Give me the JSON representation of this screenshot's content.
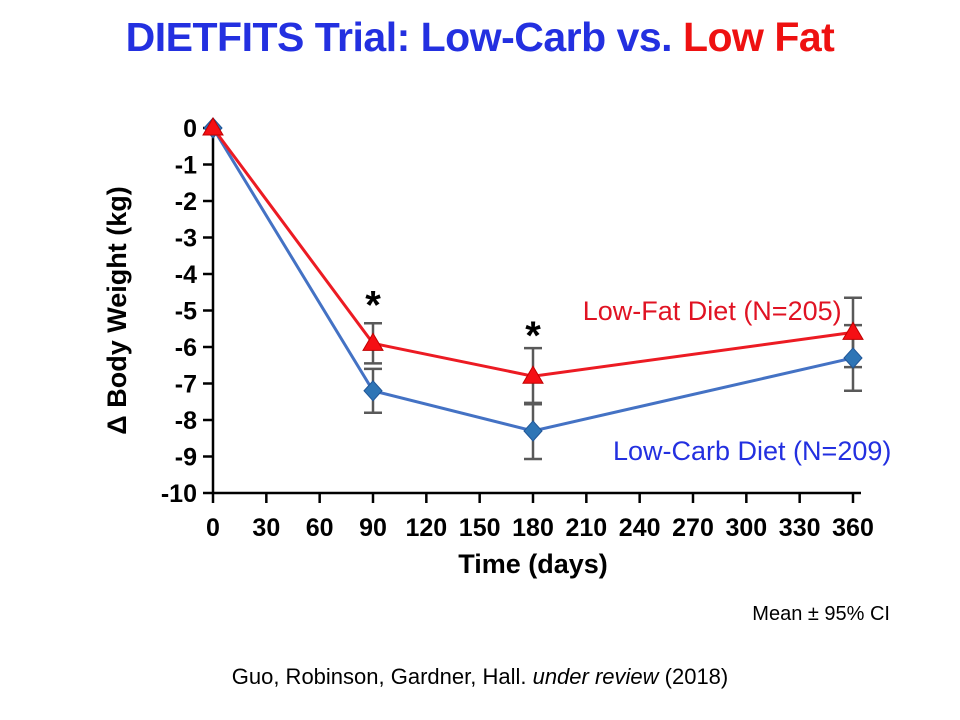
{
  "slide": {
    "title": {
      "blue_part": "DIETFITS Trial: Low-Carb vs. ",
      "red_part": "Low Fat",
      "blue_color": "#2330E0",
      "red_color": "#EE1111"
    },
    "ci_note": "Mean ± 95% CI",
    "citation": {
      "prefix": "Guo, Robinson, Gardner, Hall. ",
      "italic": "under review",
      "suffix": " (2018)"
    }
  },
  "chart_data": {
    "type": "line",
    "x": [
      0,
      90,
      180,
      360
    ],
    "series": [
      {
        "name": "Low-Fat Diet (N=205)",
        "marker": "triangle",
        "line_color": "#EC1B23",
        "marker_fill": "#F50F14",
        "marker_edge": "#C00000",
        "label_color": "#E01323",
        "values": [
          0,
          -5.9,
          -6.8,
          -5.6
        ],
        "ci95": [
          0,
          0.55,
          0.77,
          0.95
        ],
        "label_anchor": {
          "x": 208,
          "y": -5.26
        }
      },
      {
        "name": "Low-Carb Diet (N=209)",
        "marker": "diamond",
        "line_color": "#4472C4",
        "marker_fill": "#2E75B6",
        "marker_edge": "#1F5597",
        "label_color": "#2330E0",
        "values": [
          0,
          -7.2,
          -8.3,
          -6.3
        ],
        "ci95": [
          0,
          0.6,
          0.77,
          0.9
        ],
        "label_anchor": {
          "x": 225,
          "y": -9.1
        }
      }
    ],
    "xlabel": "Time (days)",
    "ylabel": "Δ Body Weight (kg)",
    "xticks": [
      0,
      30,
      60,
      90,
      120,
      150,
      180,
      210,
      240,
      270,
      300,
      330,
      360
    ],
    "yticks": [
      0,
      -1,
      -2,
      -3,
      -4,
      -5,
      -6,
      -7,
      -8,
      -9,
      -10
    ],
    "xlim": [
      0,
      360
    ],
    "ylim": [
      -10,
      0
    ],
    "grid": false,
    "legend_position": "inline-labels",
    "error_bar_color": "#595959",
    "axis_color": "#000000",
    "annotations": [
      {
        "text": "*",
        "x": 90,
        "y": -4.65
      },
      {
        "text": "*",
        "x": 180,
        "y": -5.48
      }
    ],
    "error_note": "Mean ± 95% CI"
  }
}
